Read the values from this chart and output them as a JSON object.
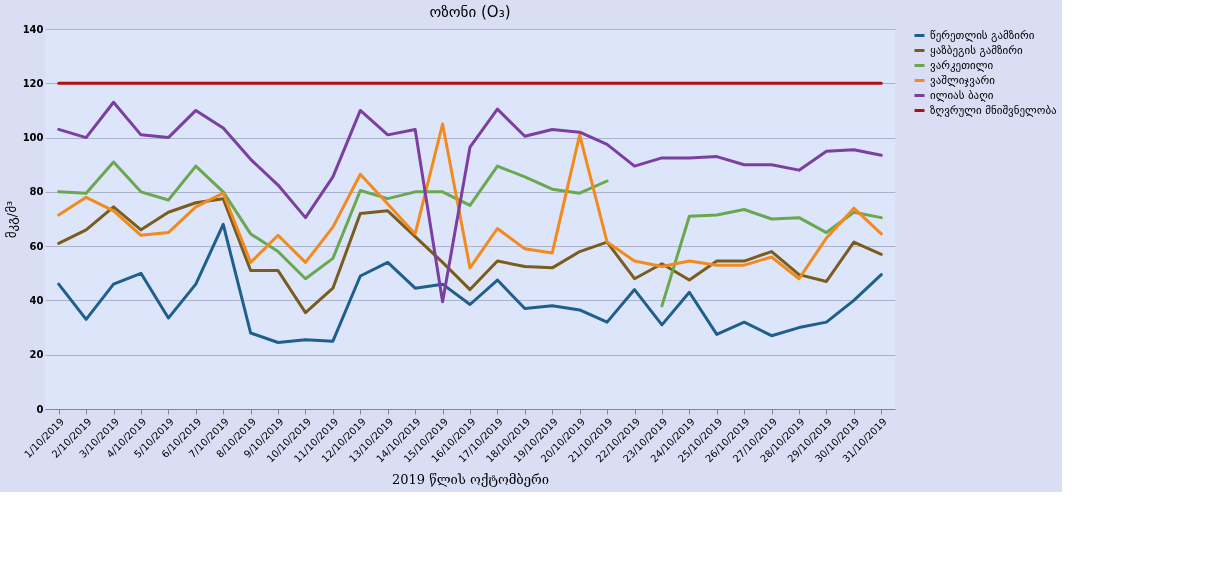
{
  "chart_data": {
    "type": "line",
    "title": "ოზონი (O₃)",
    "xlabel": "2019 წლის ოქტომბერი",
    "ylabel": "მკგ/მ³",
    "categories": [
      "1/10/2019",
      "2/10/2019",
      "3/10/2019",
      "4/10/2019",
      "5/10/2019",
      "6/10/2019",
      "7/10/2019",
      "8/10/2019",
      "9/10/2019",
      "10/10/2019",
      "11/10/2019",
      "12/10/2019",
      "13/10/2019",
      "14/10/2019",
      "15/10/2019",
      "16/10/2019",
      "17/10/2019",
      "18/10/2019",
      "19/10/2019",
      "20/10/2019",
      "21/10/2019",
      "22/10/2019",
      "23/10/2019",
      "24/10/2019",
      "25/10/2019",
      "26/10/2019",
      "27/10/2019",
      "28/10/2019",
      "29/10/2019",
      "30/10/2019",
      "31/10/2019"
    ],
    "series": [
      {
        "name": "წერეთლის გამზირი",
        "color": "#1f5f8b",
        "values": [
          46,
          33,
          46,
          50,
          33.5,
          46,
          68,
          28,
          24.5,
          25.5,
          25,
          49,
          54,
          44.5,
          46,
          38.5,
          47.5,
          37,
          38,
          36.5,
          32,
          44,
          31,
          43,
          27.5,
          32,
          27,
          30,
          32,
          40,
          49.5
        ]
      },
      {
        "name": "ყაზბეგის გამზირი",
        "color": "#7a5c1e",
        "values": [
          61,
          66,
          74.5,
          66,
          72.5,
          76,
          77.5,
          51,
          51,
          35.5,
          44.5,
          72,
          73,
          63.5,
          54,
          44,
          54.5,
          52.5,
          52,
          58,
          61.5,
          48,
          53.5,
          47.5,
          54.5,
          54.5,
          58,
          49.5,
          47,
          61.5,
          57
        ]
      },
      {
        "name": "ვარკეთილი",
        "color": "#6aa84f",
        "values": [
          80,
          79.5,
          91,
          80,
          77,
          89.5,
          80,
          64.5,
          58,
          48,
          55.5,
          80.5,
          77.5,
          80,
          80,
          75,
          89.5,
          85.5,
          81,
          79.5,
          84,
          null,
          38,
          71,
          71.5,
          73.5,
          70,
          70.5,
          65,
          72.5,
          70.5
        ]
      },
      {
        "name": "ვაშლიჯვარი",
        "color": "#f28a1e",
        "values": [
          71.5,
          78,
          73,
          64,
          65,
          74.5,
          79.5,
          54,
          64,
          54,
          67,
          86.5,
          75.5,
          64.5,
          105,
          52,
          66.5,
          59,
          57.5,
          101,
          61.5,
          54.5,
          52.5,
          54.5,
          53,
          53,
          56,
          48,
          63,
          74,
          64.5
        ]
      },
      {
        "name": "ილიას ბაღი",
        "color": "#7b3fa0",
        "values": [
          103,
          100,
          113,
          101,
          100,
          110,
          103.5,
          92,
          82.5,
          70.5,
          85.5,
          110,
          101,
          103,
          39.5,
          96.5,
          110.5,
          100.5,
          103,
          102,
          97.5,
          89.5,
          92.5,
          92.5,
          93,
          90,
          90,
          88,
          95,
          95.5,
          93.5
        ]
      },
      {
        "name": "ზღვრული მნიშვნელობა",
        "color": "#b01010",
        "values": [
          120,
          120,
          120,
          120,
          120,
          120,
          120,
          120,
          120,
          120,
          120,
          120,
          120,
          120,
          120,
          120,
          120,
          120,
          120,
          120,
          120,
          120,
          120,
          120,
          120,
          120,
          120,
          120,
          120,
          120,
          120
        ]
      }
    ],
    "ylim": [
      0,
      140
    ],
    "yticks": [
      0,
      20,
      40,
      60,
      80,
      100,
      120,
      140
    ],
    "grid": "y",
    "legend": "right",
    "marker": "none",
    "line_style": "solid"
  }
}
